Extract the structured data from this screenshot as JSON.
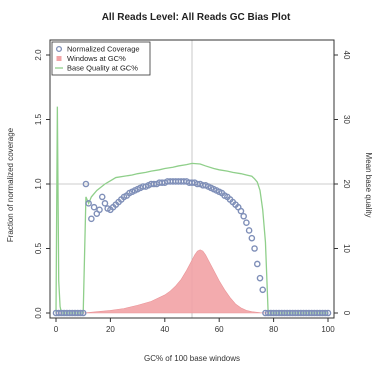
{
  "chart_data": {
    "type": "line",
    "title": "All Reads Level: All Reads GC Bias Plot",
    "xlabel": "GC% of 100 base windows",
    "ylabel": "Fraction of normalized coverage",
    "y2label": "Mean base quality",
    "xlim": [
      0,
      100
    ],
    "ylim": [
      0,
      2.0
    ],
    "y2lim": [
      0,
      40
    ],
    "x_ticks": [
      "0",
      "20",
      "40",
      "60",
      "80",
      "100"
    ],
    "y_ticks": [
      "0.0",
      "0.5",
      "1.0",
      "1.5",
      "2.0"
    ],
    "y2_ticks": [
      "0",
      "10",
      "20",
      "30",
      "40"
    ],
    "reference_lines": {
      "x": 50,
      "y": 1.0
    },
    "legend": {
      "position": "top-left",
      "entries": [
        {
          "label": "Normalized Coverage",
          "marker": "circle",
          "color": "#7f8fb8"
        },
        {
          "label": "Windows at GC%",
          "marker": "square",
          "color": "#f2a3a6"
        },
        {
          "label": "Base Quality at GC%",
          "marker": "line",
          "color": "#8fcf8a"
        }
      ]
    },
    "series": [
      {
        "name": "Normalized Coverage",
        "kind": "scatter",
        "axis": "left",
        "color": "#7f8fb8",
        "x": [
          0,
          1,
          2,
          3,
          4,
          5,
          6,
          7,
          8,
          9,
          10,
          11,
          12,
          13,
          14,
          15,
          16,
          17,
          18,
          19,
          20,
          21,
          22,
          23,
          24,
          25,
          26,
          27,
          28,
          29,
          30,
          31,
          32,
          33,
          34,
          35,
          36,
          37,
          38,
          39,
          40,
          41,
          42,
          43,
          44,
          45,
          46,
          47,
          48,
          49,
          50,
          51,
          52,
          53,
          54,
          55,
          56,
          57,
          58,
          59,
          60,
          61,
          62,
          63,
          64,
          65,
          66,
          67,
          68,
          69,
          70,
          71,
          72,
          73,
          74,
          75,
          76,
          77,
          78,
          79,
          80,
          81,
          82,
          83,
          84,
          85,
          86,
          87,
          88,
          89,
          90,
          91,
          92,
          93,
          94,
          95,
          96,
          97,
          98,
          99,
          100
        ],
        "y": [
          0,
          0,
          0,
          0,
          0,
          0,
          0,
          0,
          0,
          0,
          0,
          1.0,
          0.85,
          0.73,
          0.82,
          0.77,
          0.8,
          0.9,
          0.85,
          0.81,
          0.8,
          0.82,
          0.84,
          0.86,
          0.88,
          0.9,
          0.91,
          0.93,
          0.94,
          0.95,
          0.96,
          0.97,
          0.98,
          0.98,
          0.99,
          1.0,
          1.0,
          1.0,
          1.01,
          1.01,
          1.01,
          1.02,
          1.02,
          1.02,
          1.02,
          1.02,
          1.02,
          1.02,
          1.02,
          1.01,
          1.01,
          1.01,
          1.0,
          1.0,
          0.99,
          0.99,
          0.98,
          0.97,
          0.96,
          0.95,
          0.94,
          0.93,
          0.91,
          0.9,
          0.88,
          0.86,
          0.84,
          0.82,
          0.79,
          0.75,
          0.7,
          0.64,
          0.58,
          0.5,
          0.38,
          0.27,
          0.18,
          0,
          0,
          0,
          0,
          0,
          0,
          0,
          0,
          0,
          0,
          0,
          0,
          0,
          0,
          0,
          0,
          0,
          0,
          0,
          0,
          0,
          0,
          0,
          0
        ]
      },
      {
        "name": "Windows at GC%",
        "kind": "area",
        "axis": "left",
        "color": "#f2a3a6",
        "x": [
          0,
          10,
          15,
          20,
          25,
          30,
          35,
          40,
          42,
          44,
          46,
          48,
          50,
          51,
          52,
          53,
          54,
          55,
          56,
          58,
          60,
          62,
          64,
          66,
          68,
          70,
          72,
          75,
          80,
          100
        ],
        "y": [
          0,
          0,
          0.01,
          0.02,
          0.035,
          0.06,
          0.09,
          0.14,
          0.17,
          0.21,
          0.26,
          0.33,
          0.41,
          0.45,
          0.48,
          0.49,
          0.48,
          0.45,
          0.41,
          0.33,
          0.25,
          0.18,
          0.12,
          0.07,
          0.04,
          0.02,
          0.01,
          0.003,
          0,
          0
        ]
      },
      {
        "name": "Base Quality at GC%",
        "kind": "line",
        "axis": "right",
        "color": "#8fcf8a",
        "x": [
          0,
          0.5,
          1,
          1.5,
          2,
          3,
          10,
          11,
          12,
          13,
          15,
          18,
          20,
          22,
          25,
          28,
          30,
          33,
          35,
          38,
          40,
          43,
          45,
          48,
          50,
          53,
          55,
          58,
          60,
          63,
          65,
          68,
          70,
          72,
          73,
          74,
          75,
          76,
          77,
          78,
          100
        ],
        "y": [
          0,
          32,
          5,
          1,
          0,
          0,
          0,
          18,
          17,
          18,
          19,
          20,
          20.5,
          21,
          21.2,
          21.4,
          21.6,
          21.8,
          22,
          22.2,
          22.4,
          22.6,
          22.8,
          23,
          23.2,
          23.1,
          22.8,
          22.4,
          22.2,
          22,
          21.8,
          21.6,
          21.4,
          21.2,
          20.8,
          20.3,
          19,
          16,
          11,
          0,
          0
        ]
      }
    ]
  }
}
